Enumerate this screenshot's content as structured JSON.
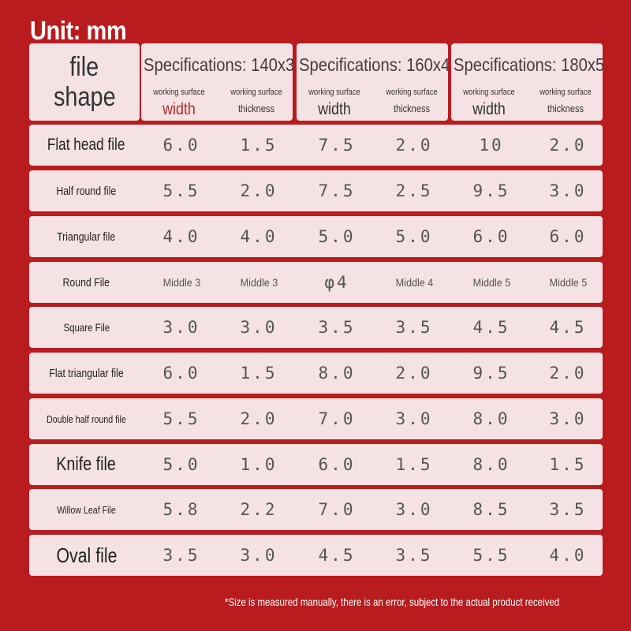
{
  "unit_label": "Unit: mm",
  "header": {
    "shape_line1": "file",
    "shape_line2": "shape",
    "specs": [
      {
        "title": "Specifications: 140x3",
        "cols": [
          {
            "line1": "working surface",
            "line2": "width"
          },
          {
            "line1": "working surface",
            "line2": "thickness"
          }
        ]
      },
      {
        "title": "Specifications: 160x4",
        "cols": [
          {
            "line1": "working surface",
            "line2": "width"
          },
          {
            "line1": "working surface",
            "line2": "thickness"
          }
        ]
      },
      {
        "title": "Specifications: 180x5",
        "cols": [
          {
            "line1": "working surface",
            "line2": "width"
          },
          {
            "line1": "working surface",
            "line2": "thickness"
          }
        ]
      }
    ]
  },
  "rows": [
    {
      "name": "Flat head file",
      "values": [
        "6.0",
        "1.5",
        "7.5",
        "2.0",
        "10",
        "2.0"
      ]
    },
    {
      "name": "Half round file",
      "values": [
        "5.5",
        "2.0",
        "7.5",
        "2.5",
        "9.5",
        "3.0"
      ]
    },
    {
      "name": "Triangular file",
      "values": [
        "4.0",
        "4.0",
        "5.0",
        "5.0",
        "6.0",
        "6.0"
      ]
    },
    {
      "name": "Round File",
      "values": [
        "Middle 3",
        "Middle 3",
        "φ4",
        "Middle 4",
        "Middle 5",
        "Middle 5"
      ]
    },
    {
      "name": "Square File",
      "values": [
        "3.0",
        "3.0",
        "3.5",
        "3.5",
        "4.5",
        "4.5"
      ]
    },
    {
      "name": "Flat triangular file",
      "values": [
        "6.0",
        "1.5",
        "8.0",
        "2.0",
        "9.5",
        "2.0"
      ]
    },
    {
      "name": "Double half round file",
      "values": [
        "5.5",
        "2.0",
        "7.0",
        "3.0",
        "8.0",
        "3.0"
      ]
    },
    {
      "name": "Knife file",
      "values": [
        "5.0",
        "1.0",
        "6.0",
        "1.5",
        "8.0",
        "1.5"
      ]
    },
    {
      "name": "Willow Leaf File",
      "values": [
        "5.8",
        "2.2",
        "7.0",
        "3.0",
        "8.5",
        "3.5"
      ]
    },
    {
      "name": "Oval file",
      "values": [
        "3.5",
        "3.0",
        "4.5",
        "3.5",
        "5.5",
        "4.0"
      ]
    }
  ],
  "footnote": "*Size is measured manually, there is an error, subject to the actual product received",
  "colors": {
    "background": "#b81c1e",
    "cell": "#f4e2e4",
    "accent_width": "#c0272b"
  }
}
